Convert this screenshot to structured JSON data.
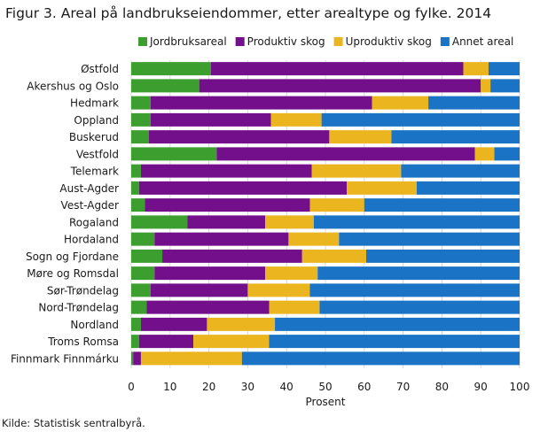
{
  "chart_data": {
    "type": "bar",
    "orientation": "horizontal",
    "stacked": true,
    "title": "Figur 3. Areal på landbrukseiendommer, etter arealtype og fylke. 2014",
    "xlabel": "Prosent",
    "ylabel": "",
    "xlim": [
      0,
      100
    ],
    "xticks": [
      0,
      10,
      20,
      30,
      40,
      50,
      60,
      70,
      80,
      90,
      100
    ],
    "grid": "vertical",
    "legend_position": "top-right",
    "categories": [
      "Østfold",
      "Akershus og Oslo",
      "Hedmark",
      "Oppland",
      "Buskerud",
      "Vestfold",
      "Telemark",
      "Aust-Agder",
      "Vest-Agder",
      "Rogaland",
      "Hordaland",
      "Sogn og Fjordane",
      "Møre og Romsdal",
      "Sør-Trøndelag",
      "Nord-Trøndelag",
      "Nordland",
      "Troms Romsa",
      "Finnmark Finnmárku"
    ],
    "series": [
      {
        "name": "Jordbruksareal",
        "color": "#3c9e2e",
        "values": [
          20.5,
          17.5,
          5,
          5,
          4.5,
          22,
          2.5,
          2,
          3.5,
          14.5,
          6,
          8,
          6,
          5,
          4,
          2.5,
          2,
          0.5
        ]
      },
      {
        "name": "Produktiv skog",
        "color": "#730f8a",
        "values": [
          65,
          72.5,
          57,
          31,
          46.5,
          66.5,
          44,
          53.5,
          42.5,
          20,
          34.5,
          36,
          28.5,
          25,
          31.5,
          17,
          14,
          2
        ]
      },
      {
        "name": "Uproduktiv skog",
        "color": "#eab51f",
        "values": [
          6.5,
          2.5,
          14.5,
          13,
          16,
          5,
          23,
          18,
          14,
          12.5,
          13,
          16.5,
          13.5,
          16,
          13,
          17.5,
          19.5,
          26
        ]
      },
      {
        "name": "Annet areal",
        "color": "#1a73c4",
        "values": [
          8,
          7.5,
          23.5,
          51,
          33,
          6.5,
          30.5,
          26.5,
          40,
          53,
          46.5,
          39.5,
          52,
          54,
          51.5,
          63,
          64.5,
          71.5
        ]
      }
    ]
  },
  "source_text": "Kilde: Statistisk sentralbyrå."
}
